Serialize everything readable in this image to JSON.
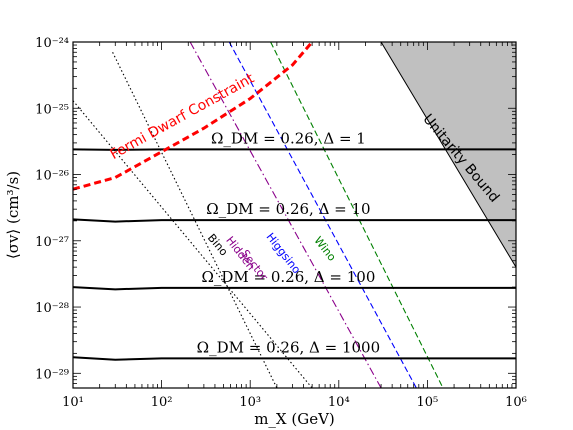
{
  "chart_data": {
    "type": "line",
    "xlabel": "m_X (GeV)",
    "ylabel": "⟨σv⟩ (cm³/s)",
    "xscale": "log",
    "yscale": "log",
    "xlim": [
      10,
      1000000
    ],
    "ylim": [
      6e-30,
      1e-24
    ],
    "x_ticks": [
      "10¹",
      "10²",
      "10³",
      "10⁴",
      "10⁵",
      "10⁶"
    ],
    "y_ticks": [
      "10⁻²⁹",
      "10⁻²⁸",
      "10⁻²⁷",
      "10⁻²⁶",
      "10⁻²⁵",
      "10⁻²⁴"
    ],
    "grid": false,
    "relic_curves": [
      {
        "label": "Ω_DM = 0.26, Δ = 1",
        "color": "#000000",
        "x": [
          10,
          30,
          100,
          1000,
          10000,
          100000,
          1000000
        ],
        "y": [
          2.4e-26,
          2.35e-26,
          2.4e-26,
          2.4e-26,
          2.4e-26,
          2.4e-26,
          2.4e-26
        ]
      },
      {
        "label": "Ω_DM = 0.26, Δ = 10",
        "color": "#000000",
        "x": [
          10,
          30,
          100,
          1000,
          10000,
          100000,
          1000000
        ],
        "y": [
          2.1e-27,
          1.95e-27,
          2.05e-27,
          2.05e-27,
          2.05e-27,
          2.05e-27,
          2.05e-27
        ]
      },
      {
        "label": "Ω_DM = 0.26, Δ = 100",
        "color": "#000000",
        "x": [
          10,
          30,
          100,
          1000,
          10000,
          100000,
          1000000
        ],
        "y": [
          2e-28,
          1.85e-28,
          1.95e-28,
          1.95e-28,
          1.95e-28,
          1.95e-28,
          1.95e-28
        ]
      },
      {
        "label": "Ω_DM = 0.26, Δ = 1000",
        "color": "#000000",
        "x": [
          10,
          30,
          100,
          1000,
          10000,
          100000,
          1000000
        ],
        "y": [
          1.75e-29,
          1.6e-29,
          1.68e-29,
          1.68e-29,
          1.68e-29,
          1.68e-29,
          1.68e-29
        ]
      }
    ],
    "model_lines": [
      {
        "label": "Bino",
        "color": "#000000",
        "style": "dotted",
        "x": [
          10,
          5000
        ],
        "y": [
          1.3e-25,
          6e-30
        ]
      },
      {
        "label": "",
        "color": "#000000",
        "style": "dotted",
        "x": [
          28,
          2000
        ],
        "y": [
          7e-25,
          6e-30
        ]
      },
      {
        "label": "Hidden Sector",
        "color": "#8b008b",
        "style": "dashdot",
        "x": [
          210,
          30000
        ],
        "y": [
          1e-24,
          6e-30
        ]
      },
      {
        "label": "Higgsino",
        "color": "#0000ff",
        "style": "dashed",
        "x": [
          580,
          75000
        ],
        "y": [
          1e-24,
          6e-30
        ]
      },
      {
        "label": "Wino",
        "color": "#008000",
        "style": "dashed",
        "x": [
          1700,
          150000
        ],
        "y": [
          1e-24,
          6e-30
        ]
      }
    ],
    "fermi_constraint": {
      "label": "Fermi Dwarf Constraint",
      "color": "#ff0000",
      "style": "dashed",
      "x": [
        10,
        30,
        100,
        300,
        1000,
        3000,
        5000
      ],
      "y": [
        6e-27,
        9e-27,
        2.2e-26,
        5e-26,
        1.4e-25,
        4.5e-25,
        1e-24
      ]
    },
    "unitarity": {
      "label": "Unitarity Bound",
      "fill": "#c0c0c0",
      "x": [
        30000,
        1000000
      ],
      "y": [
        1e-24,
        4e-28
      ]
    }
  }
}
